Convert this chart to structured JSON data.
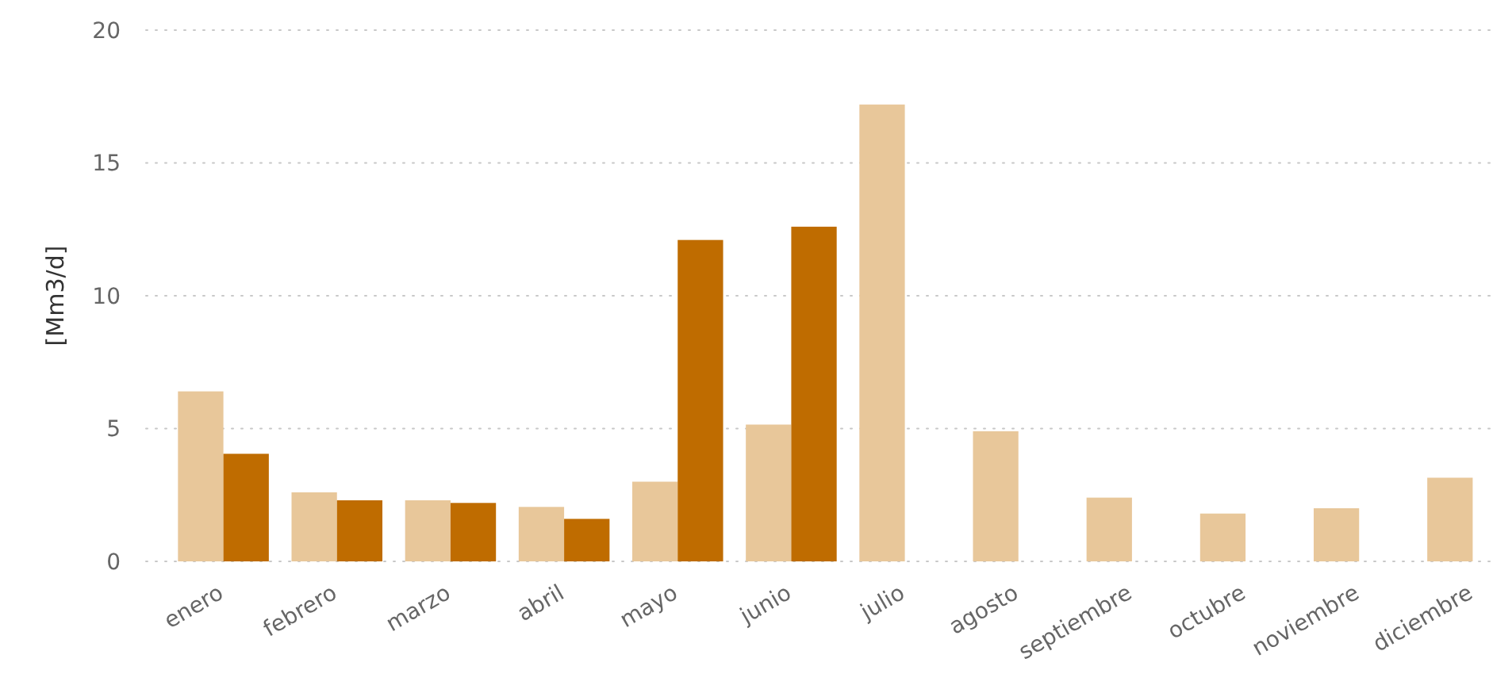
{
  "chart_data": {
    "type": "bar",
    "ylabel": "[Mm3/d]",
    "categories": [
      "enero",
      "febrero",
      "marzo",
      "abril",
      "mayo",
      "junio",
      "julio",
      "agosto",
      "septiembre",
      "octubre",
      "noviembre",
      "diciembre"
    ],
    "series": [
      {
        "color": "#e8c79a",
        "values": [
          6.4,
          2.6,
          2.3,
          2.05,
          3.0,
          5.15,
          17.2,
          4.9,
          2.4,
          1.8,
          2.0,
          3.15
        ]
      },
      {
        "color": "#bf6c00",
        "values": [
          4.05,
          2.3,
          2.2,
          1.6,
          12.1,
          12.6,
          null,
          null,
          null,
          null,
          null,
          null
        ]
      }
    ],
    "ylim": [
      0,
      20
    ],
    "yticks": [
      0,
      5,
      10,
      15,
      20
    ],
    "grid": "y"
  }
}
